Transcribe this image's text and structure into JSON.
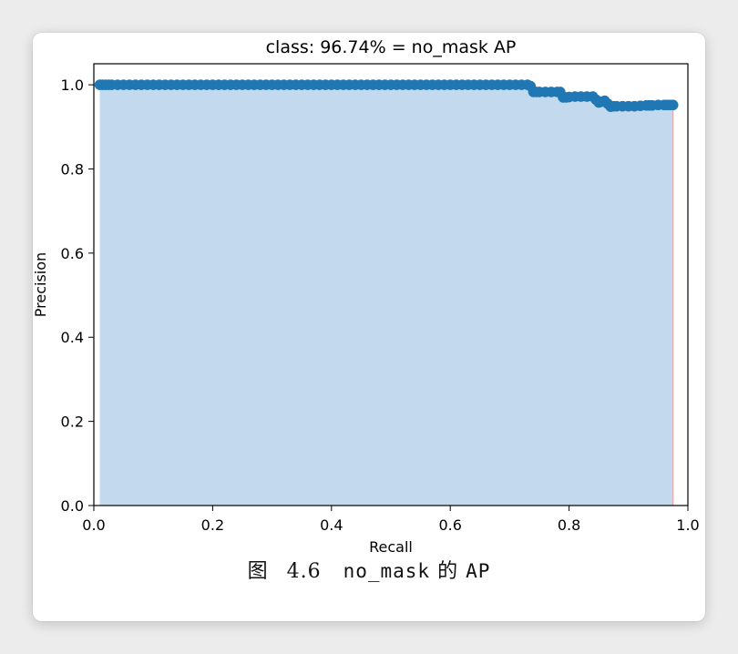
{
  "chart_data": {
    "type": "area",
    "title": "class: 96.74% = no_mask AP",
    "xlabel": "Recall",
    "ylabel": "Precision",
    "xlim": [
      0.0,
      1.0
    ],
    "ylim": [
      0.0,
      1.05
    ],
    "xticks": [
      "0.0",
      "0.2",
      "0.4",
      "0.6",
      "0.8",
      "1.0"
    ],
    "yticks": [
      "0.0",
      "0.2",
      "0.4",
      "0.6",
      "0.8",
      "1.0"
    ],
    "xtick_values": [
      0.0,
      0.2,
      0.4,
      0.6,
      0.8,
      1.0
    ],
    "ytick_values": [
      0.0,
      0.2,
      0.4,
      0.6,
      0.8,
      1.0
    ],
    "grid": false,
    "legend": "none",
    "series": [
      {
        "marker": "o",
        "color": "#1f77b4",
        "fill_color": "#c3d9ee",
        "recall": [
          0.01,
          0.015,
          0.02,
          0.025,
          0.03,
          0.04,
          0.05,
          0.06,
          0.07,
          0.08,
          0.09,
          0.1,
          0.11,
          0.12,
          0.13,
          0.14,
          0.15,
          0.16,
          0.17,
          0.18,
          0.19,
          0.2,
          0.21,
          0.22,
          0.23,
          0.24,
          0.25,
          0.26,
          0.27,
          0.28,
          0.29,
          0.3,
          0.31,
          0.32,
          0.33,
          0.34,
          0.35,
          0.36,
          0.37,
          0.38,
          0.39,
          0.4,
          0.41,
          0.42,
          0.43,
          0.44,
          0.45,
          0.46,
          0.47,
          0.48,
          0.49,
          0.5,
          0.51,
          0.52,
          0.53,
          0.54,
          0.55,
          0.56,
          0.57,
          0.58,
          0.59,
          0.6,
          0.61,
          0.62,
          0.63,
          0.64,
          0.65,
          0.66,
          0.67,
          0.68,
          0.69,
          0.7,
          0.71,
          0.72,
          0.73,
          0.735,
          0.74,
          0.745,
          0.75,
          0.76,
          0.77,
          0.78,
          0.785,
          0.79,
          0.795,
          0.8,
          0.81,
          0.82,
          0.83,
          0.84,
          0.845,
          0.85,
          0.855,
          0.86,
          0.865,
          0.87,
          0.875,
          0.88,
          0.89,
          0.9,
          0.91,
          0.92,
          0.93,
          0.935,
          0.94,
          0.95,
          0.96,
          0.965,
          0.97,
          0.975
        ],
        "precision": [
          1.0,
          1.0,
          1.0,
          1.0,
          1.0,
          1.0,
          1.0,
          1.0,
          1.0,
          1.0,
          1.0,
          1.0,
          1.0,
          1.0,
          1.0,
          1.0,
          1.0,
          1.0,
          1.0,
          1.0,
          1.0,
          1.0,
          1.0,
          1.0,
          1.0,
          1.0,
          1.0,
          1.0,
          1.0,
          1.0,
          1.0,
          1.0,
          1.0,
          1.0,
          1.0,
          1.0,
          1.0,
          1.0,
          1.0,
          1.0,
          1.0,
          1.0,
          1.0,
          1.0,
          1.0,
          1.0,
          1.0,
          1.0,
          1.0,
          1.0,
          1.0,
          1.0,
          1.0,
          1.0,
          1.0,
          1.0,
          1.0,
          1.0,
          1.0,
          1.0,
          1.0,
          1.0,
          1.0,
          1.0,
          1.0,
          1.0,
          1.0,
          1.0,
          1.0,
          1.0,
          1.0,
          1.0,
          1.0,
          1.0,
          1.0,
          0.997,
          0.983,
          0.983,
          0.983,
          0.983,
          0.983,
          0.983,
          0.983,
          0.97,
          0.97,
          0.971,
          0.972,
          0.972,
          0.972,
          0.972,
          0.965,
          0.958,
          0.96,
          0.962,
          0.955,
          0.948,
          0.949,
          0.949,
          0.949,
          0.949,
          0.949,
          0.95,
          0.951,
          0.951,
          0.951,
          0.952,
          0.952,
          0.952,
          0.952,
          0.952
        ]
      }
    ],
    "end_line": {
      "recall": 0.975,
      "color": "#e9a6a6"
    }
  },
  "caption": {
    "label": "图 4.6",
    "class_name": "no_mask",
    "connector": "的",
    "metric": "AP"
  }
}
